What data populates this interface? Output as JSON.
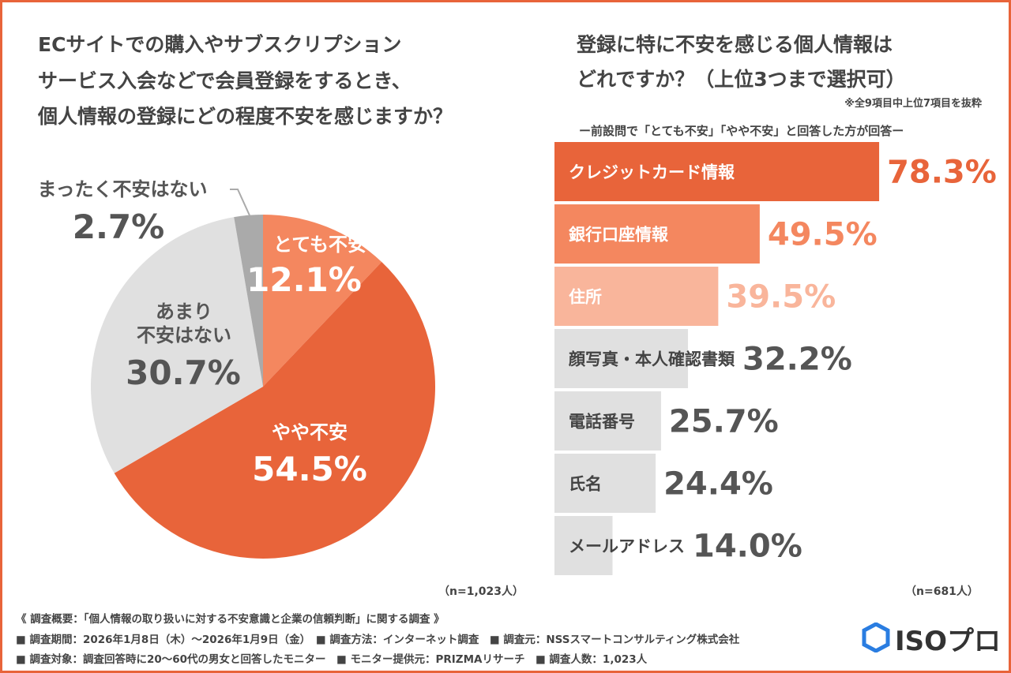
{
  "chart_data": [
    {
      "type": "pie",
      "title": [
        "ECサイトでの購入やサブスクリプション",
        "サービス入会などで会員登録をするとき、",
        "個人情報の登録にどの程度不安を感じますか？"
      ],
      "categories": [
        "とても不安",
        "やや不安",
        "あまり\n不安はない",
        "まったく不安はない"
      ],
      "values": [
        12.1,
        54.5,
        30.7,
        2.7
      ],
      "value_labels": [
        "12.1%",
        "54.5%",
        "30.7%",
        "2.7%"
      ],
      "colors": [
        "#f4875f",
        "#e8643a",
        "#e0e0e0",
        "#aaaaaa"
      ],
      "note": "（n=1,023人）"
    },
    {
      "type": "bar",
      "title": [
        "登録に特に不安を感じる個人情報は",
        "どれですか？（上位3つまで選択可）"
      ],
      "note_top": "※全9項目中上位7項目を抜粋",
      "subtitle": "ー前設問で「とても不安」「やや不安」と回答した方が回答ー",
      "categories": [
        "クレジットカード情報",
        "銀行口座情報",
        "住所",
        "顔写真・本人確認書類",
        "電話番号",
        "氏名",
        "メールアドレス"
      ],
      "values": [
        78.3,
        49.5,
        39.5,
        32.2,
        25.7,
        24.4,
        14.0
      ],
      "value_labels": [
        "78.3%",
        "49.5%",
        "39.5%",
        "32.2%",
        "25.7%",
        "24.4%",
        "14.0%"
      ],
      "colors": [
        "#e8643a",
        "#f4875f",
        "#f9b59b",
        "#e0e0e0",
        "#e0e0e0",
        "#e0e0e0",
        "#e0e0e0"
      ],
      "note": "（n=681人）"
    }
  ],
  "footer": {
    "lines": [
      "《 調査概要：「個人情報の取り扱いに対する不安意識と企業の信頼判断」に関する調査 》",
      "■ 調査期間：2026年1月8日（木）～2026年1月9日（金）　■ 調査方法：インターネット調査　■ 調査元：NSSスマートコンサルティング株式会社",
      "■ 調査対象：調査回答時に20〜60代の男女と回答したモニター　■ モニター提供元：PRIZMAリサーチ　■ 調査人数：1,023人"
    ],
    "logo": "ISOプロ"
  }
}
